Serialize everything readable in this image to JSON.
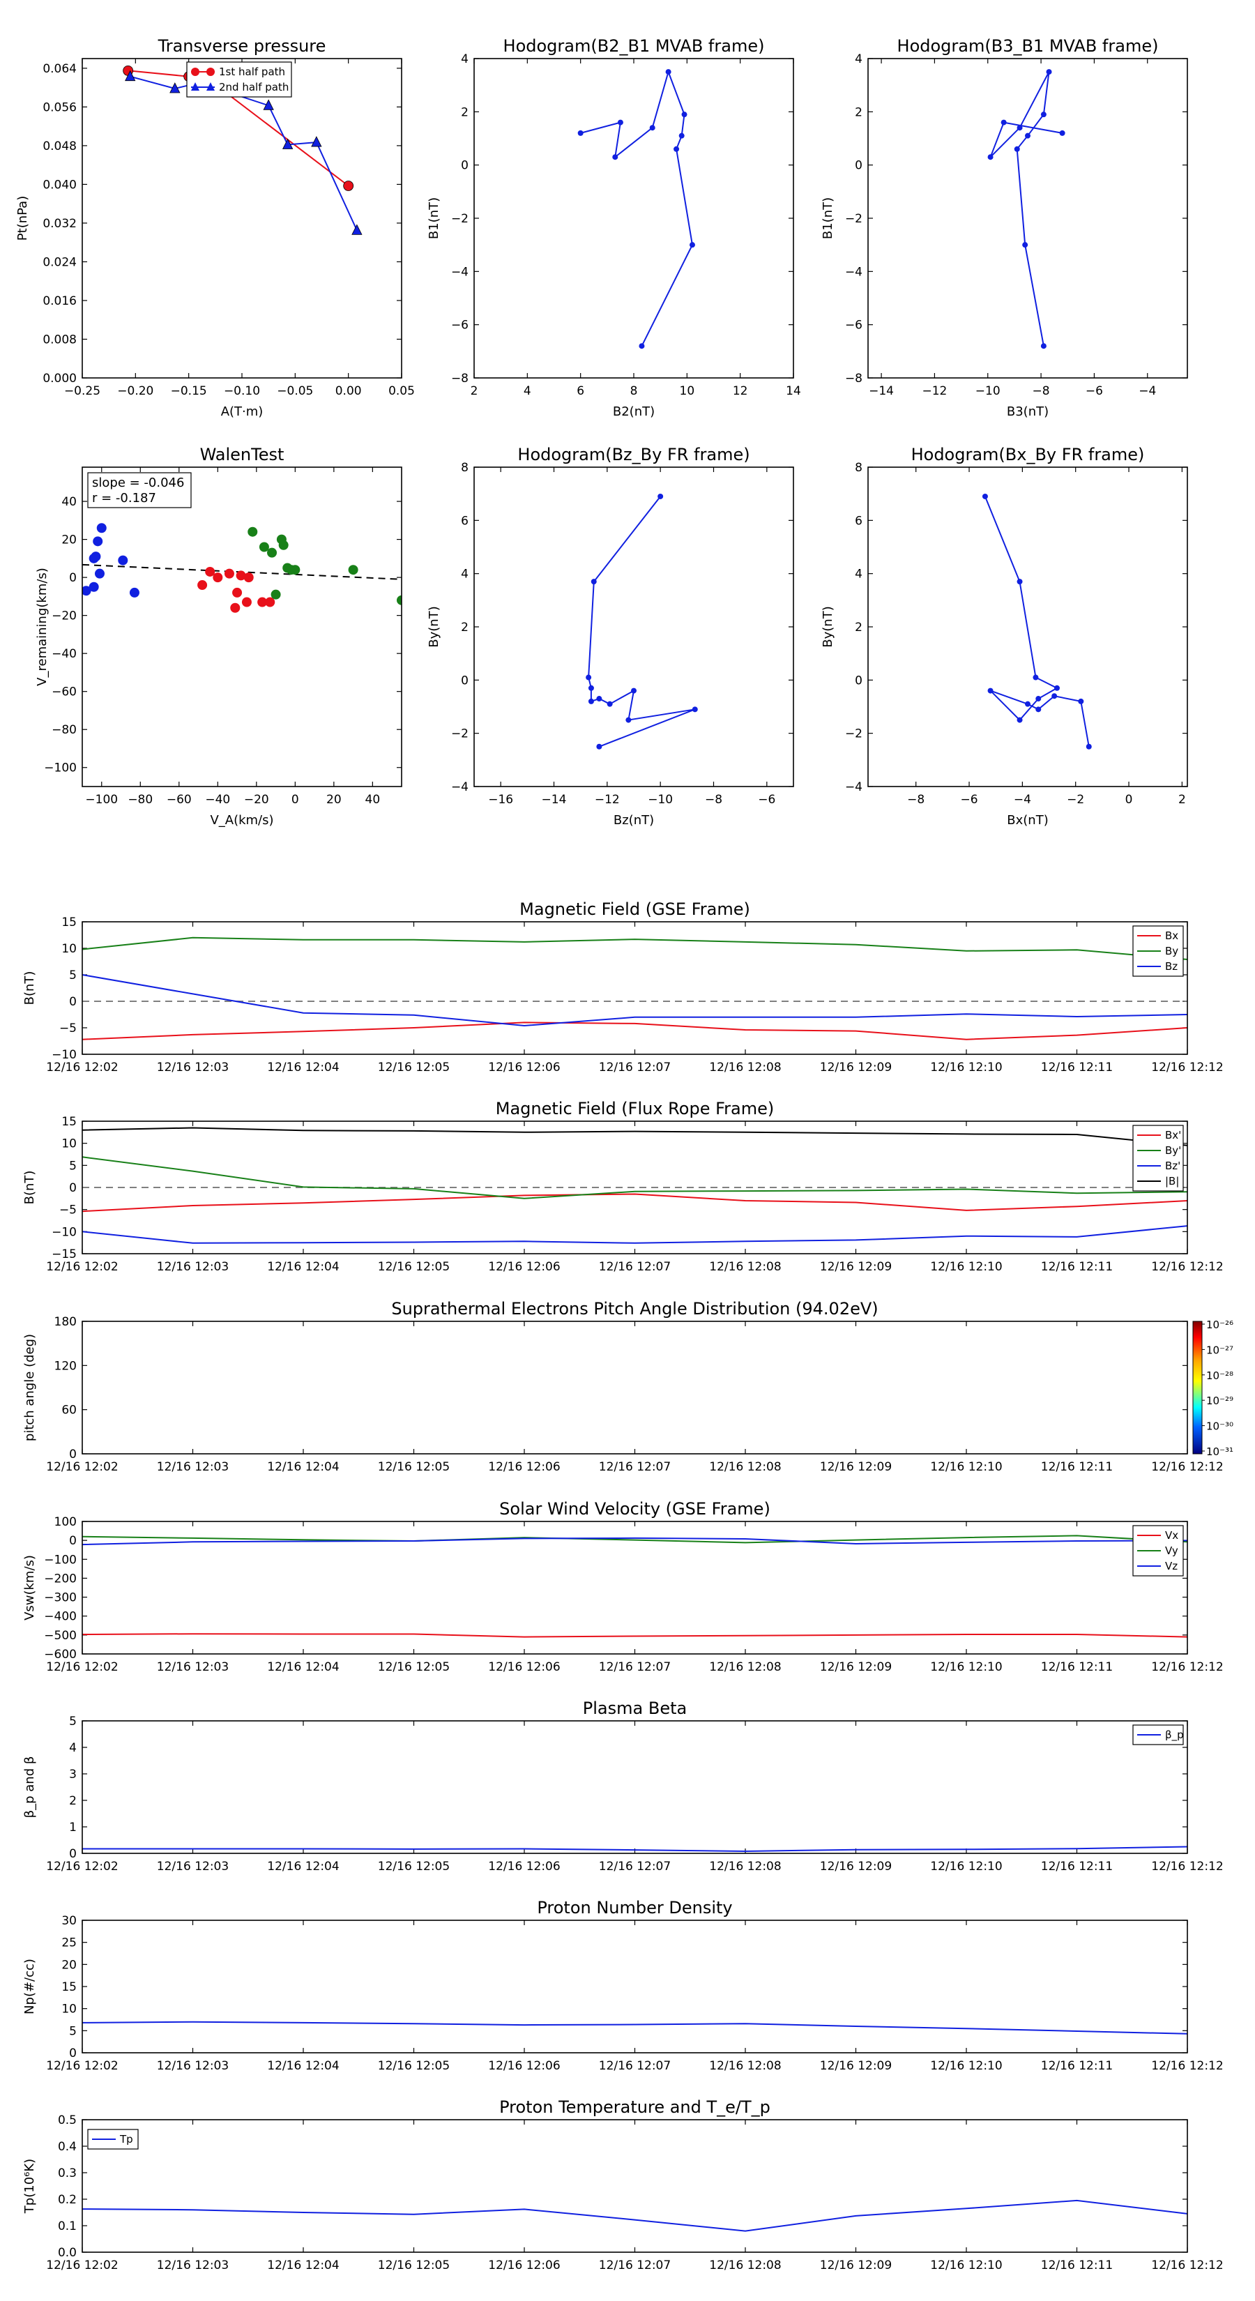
{
  "colors": {
    "red": "#e8101a",
    "green": "#188018",
    "blue": "#1020e0",
    "black": "#000000",
    "gray": "#808080"
  },
  "time_ticks": [
    "12/16 12:02",
    "12/16 12:03",
    "12/16 12:04",
    "12/16 12:05",
    "12/16 12:06",
    "12/16 12:07",
    "12/16 12:08",
    "12/16 12:09",
    "12/16 12:10",
    "12/16 12:11",
    "12/16 12:12"
  ],
  "chart_data": [
    {
      "id": "transverse-pressure",
      "type": "line+scatter",
      "title": "Transverse pressure",
      "xlabel": "A(T·m)",
      "ylabel": "Pt(nPa)",
      "xlim": [
        -0.25,
        0.05
      ],
      "ylim": [
        0,
        0.066
      ],
      "xticks": [
        "−0.25",
        "−0.20",
        "−0.15",
        "−0.10",
        "−0.05",
        "0.00",
        "0.05"
      ],
      "xtickvals": [
        -0.25,
        -0.2,
        -0.15,
        -0.1,
        -0.05,
        0,
        0.05
      ],
      "yticks": [
        "0.000",
        "0.008",
        "0.016",
        "0.024",
        "0.032",
        "0.040",
        "0.048",
        "0.056",
        "0.064"
      ],
      "ytickvals": [
        0,
        0.008,
        0.016,
        0.024,
        0.032,
        0.04,
        0.048,
        0.056,
        0.064
      ],
      "legend_position": "top-center",
      "series": [
        {
          "name": "1st half path",
          "color": "red",
          "marker": "circle",
          "x": [
            -0.207,
            -0.15,
            -0.135,
            0.0
          ],
          "y": [
            0.0635,
            0.0623,
            0.0623,
            0.0397
          ]
        },
        {
          "name": "2nd half path",
          "color": "blue",
          "marker": "triangle",
          "x": [
            -0.205,
            -0.163,
            -0.14,
            -0.075,
            -0.057,
            -0.03,
            0.008
          ],
          "y": [
            0.0623,
            0.0598,
            0.061,
            0.0563,
            0.0482,
            0.0487,
            0.0305
          ]
        }
      ]
    },
    {
      "id": "hodogram-b2-b1",
      "type": "line",
      "title": "Hodogram(B2_B1 MVAB frame)",
      "xlabel": "B2(nT)",
      "ylabel": "B1(nT)",
      "xlim": [
        2,
        14
      ],
      "ylim": [
        -8,
        4
      ],
      "xticks": [
        "2",
        "4",
        "6",
        "8",
        "10",
        "12",
        "14"
      ],
      "xtickvals": [
        2,
        4,
        6,
        8,
        10,
        12,
        14
      ],
      "yticks": [
        "−8",
        "−6",
        "−4",
        "−2",
        "0",
        "2",
        "4"
      ],
      "ytickvals": [
        -8,
        -6,
        -4,
        -2,
        0,
        2,
        4
      ],
      "series": [
        {
          "color": "blue",
          "marker": "dot",
          "x": [
            8.3,
            10.2,
            9.6,
            9.8,
            9.9,
            9.3,
            8.7,
            7.3,
            7.5,
            6.0
          ],
          "y": [
            -6.8,
            -3.0,
            0.6,
            1.1,
            1.9,
            3.5,
            1.4,
            0.3,
            1.6,
            1.2
          ]
        }
      ]
    },
    {
      "id": "hodogram-b3-b1",
      "type": "line",
      "title": "Hodogram(B3_B1 MVAB frame)",
      "xlabel": "B3(nT)",
      "ylabel": "B1(nT)",
      "xlim": [
        -14.5,
        -2.5
      ],
      "ylim": [
        -8,
        4
      ],
      "xticks": [
        "−14",
        "−12",
        "−10",
        "−8",
        "−6",
        "−4"
      ],
      "xtickvals": [
        -14,
        -12,
        -10,
        -8,
        -6,
        -4
      ],
      "yticks": [
        "−8",
        "−6",
        "−4",
        "−2",
        "0",
        "2",
        "4"
      ],
      "ytickvals": [
        -8,
        -6,
        -4,
        -2,
        0,
        2,
        4
      ],
      "series": [
        {
          "color": "blue",
          "marker": "dot",
          "x": [
            -7.9,
            -8.6,
            -8.9,
            -8.5,
            -7.9,
            -7.7,
            -8.8,
            -9.9,
            -9.4,
            -7.2
          ],
          "y": [
            -6.8,
            -3.0,
            0.6,
            1.1,
            1.9,
            3.5,
            1.4,
            0.3,
            1.6,
            1.2
          ]
        }
      ]
    },
    {
      "id": "walen-test",
      "type": "scatter",
      "title": "WalenTest",
      "xlabel": "V_A(km/s)",
      "ylabel": "V_remaining(km/s)",
      "xlim": [
        -110,
        55
      ],
      "ylim": [
        -110,
        58
      ],
      "xticks": [
        "−100",
        "−80",
        "−60",
        "−40",
        "−20",
        "0",
        "20",
        "40"
      ],
      "xtickvals": [
        -100,
        -80,
        -60,
        -40,
        -20,
        0,
        20,
        40
      ],
      "yticks": [
        "−100",
        "−80",
        "−60",
        "−40",
        "−20",
        "0",
        "20",
        "40"
      ],
      "ytickvals": [
        -100,
        -80,
        -60,
        -40,
        -20,
        0,
        20,
        40
      ],
      "annotations": [
        "slope = -0.046",
        "r = -0.187"
      ],
      "fit_line": {
        "color": "black",
        "dash": true,
        "x": [
          -110,
          55
        ],
        "y": [
          6.7,
          -1.0
        ]
      },
      "series": [
        {
          "color": "blue",
          "x": [
            -108,
            -104,
            -104,
            -103,
            -102,
            -101,
            -100,
            -89,
            -83
          ],
          "y": [
            -7,
            -5,
            10,
            11,
            19,
            2,
            26,
            9,
            -8
          ]
        },
        {
          "color": "red",
          "x": [
            -48,
            -44,
            -40,
            -34,
            -31,
            -30,
            -28,
            -25,
            -24,
            -17,
            -13
          ],
          "y": [
            -4,
            3,
            0,
            2,
            -16,
            -8,
            1,
            -13,
            0,
            -13,
            -13
          ]
        },
        {
          "color": "green",
          "x": [
            -22,
            -16,
            -12,
            -10,
            -7,
            -6,
            -4,
            -2,
            0,
            30,
            55
          ],
          "y": [
            24,
            16,
            13,
            -9,
            20,
            17,
            5,
            4,
            4,
            4,
            -12
          ]
        }
      ]
    },
    {
      "id": "hodogram-bz-by",
      "type": "line",
      "title": "Hodogram(Bz_By FR frame)",
      "xlabel": "Bz(nT)",
      "ylabel": "By(nT)",
      "xlim": [
        -17,
        -5
      ],
      "ylim": [
        -4,
        8
      ],
      "xticks": [
        "−16",
        "−14",
        "−12",
        "−10",
        "−8",
        "−6"
      ],
      "xtickvals": [
        -16,
        -14,
        -12,
        -10,
        -8,
        -6
      ],
      "yticks": [
        "−4",
        "−2",
        "0",
        "2",
        "4",
        "6",
        "8"
      ],
      "ytickvals": [
        -4,
        -2,
        0,
        2,
        4,
        6,
        8
      ],
      "series": [
        {
          "color": "blue",
          "marker": "dot",
          "x": [
            -10.0,
            -12.5,
            -12.7,
            -12.6,
            -12.6,
            -12.3,
            -11.9,
            -11.0,
            -11.2,
            -8.7,
            -12.3
          ],
          "y": [
            6.9,
            3.7,
            0.1,
            -0.3,
            -0.8,
            -0.7,
            -0.9,
            -0.4,
            -1.5,
            -1.1,
            -2.5
          ]
        }
      ]
    },
    {
      "id": "hodogram-bx-by",
      "type": "line",
      "title": "Hodogram(Bx_By FR frame)",
      "xlabel": "Bx(nT)",
      "ylabel": "By(nT)",
      "xlim": [
        -9.8,
        2.2
      ],
      "ylim": [
        -4,
        8
      ],
      "xticks": [
        "−8",
        "−6",
        "−4",
        "−2",
        "0",
        "2"
      ],
      "xtickvals": [
        -8,
        -6,
        -4,
        -2,
        0,
        2
      ],
      "yticks": [
        "−4",
        "−2",
        "0",
        "2",
        "4",
        "6",
        "8"
      ],
      "ytickvals": [
        -4,
        -2,
        0,
        2,
        4,
        6,
        8
      ],
      "series": [
        {
          "color": "blue",
          "marker": "dot",
          "x": [
            -5.4,
            -4.1,
            -3.5,
            -2.7,
            -3.4,
            -4.1,
            -5.2,
            -3.8,
            -3.4,
            -2.8,
            -1.8,
            -1.5
          ],
          "y": [
            6.9,
            3.7,
            0.1,
            -0.3,
            -0.7,
            -1.5,
            -0.4,
            -0.9,
            -1.1,
            -0.6,
            -0.8,
            -2.5
          ]
        }
      ]
    },
    {
      "id": "mag-gse",
      "type": "line",
      "title": "Magnetic Field (GSE Frame)",
      "ylabel": "B(nT)",
      "xlim": [
        0,
        10
      ],
      "ylim": [
        -10,
        15
      ],
      "yticks": [
        "−10",
        "−5",
        "0",
        "5",
        "10",
        "15"
      ],
      "ytickvals": [
        -10,
        -5,
        0,
        5,
        10,
        15
      ],
      "zero_line": true,
      "legend_position": "top-right",
      "x": [
        0,
        1,
        2,
        3,
        4,
        5,
        6,
        7,
        8,
        9,
        10
      ],
      "series": [
        {
          "name": "Bx",
          "color": "red",
          "values": [
            -7.2,
            -6.3,
            -5.7,
            -5.0,
            -4.0,
            -4.2,
            -5.4,
            -5.6,
            -7.2,
            -6.4,
            -5.0
          ]
        },
        {
          "name": "By",
          "color": "green",
          "values": [
            9.8,
            12.0,
            11.6,
            11.6,
            11.2,
            11.7,
            11.2,
            10.7,
            9.5,
            9.7,
            7.9
          ]
        },
        {
          "name": "Bz",
          "color": "blue",
          "values": [
            5.0,
            1.4,
            -2.2,
            -2.6,
            -4.6,
            -3.0,
            -3.0,
            -3.0,
            -2.4,
            -2.9,
            -2.5
          ]
        }
      ]
    },
    {
      "id": "mag-fluxrope",
      "type": "line",
      "title": "Magnetic Field (Flux Rope Frame)",
      "ylabel": "B(nT)",
      "xlim": [
        0,
        10
      ],
      "ylim": [
        -15,
        15
      ],
      "yticks": [
        "−15",
        "−10",
        "−5",
        "0",
        "5",
        "10",
        "15"
      ],
      "ytickvals": [
        -15,
        -10,
        -5,
        0,
        5,
        10,
        15
      ],
      "zero_line": true,
      "legend_position": "top-right",
      "x": [
        0,
        1,
        2,
        3,
        4,
        5,
        6,
        7,
        8,
        9,
        10
      ],
      "series": [
        {
          "name": "Bx'",
          "color": "red",
          "values": [
            -5.4,
            -4.1,
            -3.5,
            -2.7,
            -1.8,
            -1.5,
            -3.0,
            -3.4,
            -5.2,
            -4.3,
            -3.0
          ]
        },
        {
          "name": "By'",
          "color": "green",
          "values": [
            6.9,
            3.7,
            0.1,
            -0.3,
            -2.5,
            -0.9,
            -0.8,
            -0.7,
            -0.4,
            -1.3,
            -1.0
          ]
        },
        {
          "name": "Bz'",
          "color": "blue",
          "values": [
            -10.0,
            -12.6,
            -12.5,
            -12.4,
            -12.2,
            -12.6,
            -12.2,
            -11.9,
            -11.0,
            -11.2,
            -8.7
          ]
        },
        {
          "name": "|B|",
          "color": "black",
          "values": [
            13.0,
            13.5,
            12.9,
            12.8,
            12.5,
            12.7,
            12.5,
            12.3,
            12.1,
            12.0,
            9.5
          ]
        }
      ]
    },
    {
      "id": "pitch-angle",
      "type": "heatmap",
      "title": "Suprathermal Electrons Pitch Angle Distribution (94.02eV)",
      "ylabel": "pitch angle (deg)",
      "xlim": [
        0,
        10
      ],
      "ylim": [
        0,
        180
      ],
      "yticks": [
        "0",
        "60",
        "120",
        "180"
      ],
      "ytickvals": [
        0,
        60,
        120,
        180
      ],
      "colorbar_labels": [
        "10⁻²⁶",
        "10⁻²⁷",
        "10⁻²⁸",
        "10⁻²⁹",
        "10⁻³⁰",
        "10⁻³¹"
      ]
    },
    {
      "id": "sw-velocity",
      "type": "line",
      "title": "Solar Wind Velocity (GSE Frame)",
      "ylabel": "Vsw(km/s)",
      "xlim": [
        0,
        10
      ],
      "ylim": [
        -600,
        100
      ],
      "yticks": [
        "−600",
        "−500",
        "−400",
        "−300",
        "−200",
        "−100",
        "0",
        "100"
      ],
      "ytickvals": [
        -600,
        -500,
        -400,
        -300,
        -200,
        -100,
        0,
        100
      ],
      "legend_position": "top-right",
      "x": [
        0,
        1,
        2,
        3,
        4,
        5,
        6,
        7,
        8,
        9,
        10
      ],
      "series": [
        {
          "name": "Vx",
          "color": "red",
          "values": [
            -497,
            -494,
            -495,
            -495,
            -510,
            -506,
            -503,
            -500,
            -497,
            -497,
            -510
          ]
        },
        {
          "name": "Vy",
          "color": "green",
          "values": [
            20,
            12,
            3,
            -3,
            15,
            2,
            -12,
            2,
            15,
            25,
            -8
          ]
        },
        {
          "name": "Vz",
          "color": "blue",
          "values": [
            -22,
            -8,
            -5,
            -3,
            10,
            12,
            8,
            -18,
            -10,
            -3,
            -1
          ]
        }
      ]
    },
    {
      "id": "plasma-beta",
      "type": "line",
      "title": "Plasma Beta",
      "ylabel": "β_p and β",
      "xlim": [
        0,
        10
      ],
      "ylim": [
        0,
        5
      ],
      "yticks": [
        "0",
        "1",
        "2",
        "3",
        "4",
        "5"
      ],
      "ytickvals": [
        0,
        1,
        2,
        3,
        4,
        5
      ],
      "legend_position": "top-right",
      "x": [
        0,
        1,
        2,
        3,
        4,
        5,
        6,
        7,
        8,
        9,
        10
      ],
      "series": [
        {
          "name": "β_p",
          "color": "blue",
          "values": [
            0.17,
            0.17,
            0.17,
            0.16,
            0.17,
            0.13,
            0.08,
            0.14,
            0.15,
            0.18,
            0.25
          ]
        }
      ]
    },
    {
      "id": "proton-density",
      "type": "line",
      "title": "Proton Number Density",
      "ylabel": "Np(#/cc)",
      "xlim": [
        0,
        10
      ],
      "ylim": [
        0,
        30
      ],
      "yticks": [
        "0",
        "5",
        "10",
        "15",
        "20",
        "25",
        "30"
      ],
      "ytickvals": [
        0,
        5,
        10,
        15,
        20,
        25,
        30
      ],
      "x": [
        0,
        1,
        2,
        3,
        4,
        5,
        6,
        7,
        8,
        9,
        10
      ],
      "series": [
        {
          "color": "blue",
          "values": [
            6.8,
            7.0,
            6.8,
            6.6,
            6.3,
            6.4,
            6.6,
            6.0,
            5.5,
            4.9,
            4.3
          ]
        }
      ]
    },
    {
      "id": "proton-temp",
      "type": "line",
      "title": "Proton Temperature and T_e/T_p",
      "ylabel": "Tp(10⁶K)",
      "xlim": [
        0,
        10
      ],
      "ylim": [
        0,
        0.5
      ],
      "yticks": [
        "0.0",
        "0.1",
        "0.2",
        "0.3",
        "0.4",
        "0.5"
      ],
      "ytickvals": [
        0,
        0.1,
        0.2,
        0.3,
        0.4,
        0.5
      ],
      "legend_position": "top-left",
      "x": [
        0,
        1,
        2,
        3,
        4,
        5,
        6,
        7,
        8,
        9,
        10
      ],
      "series": [
        {
          "name": "Tp",
          "color": "blue",
          "values": [
            0.163,
            0.16,
            0.15,
            0.143,
            0.162,
            0.122,
            0.08,
            0.137,
            0.165,
            0.195,
            0.145
          ]
        }
      ]
    }
  ]
}
